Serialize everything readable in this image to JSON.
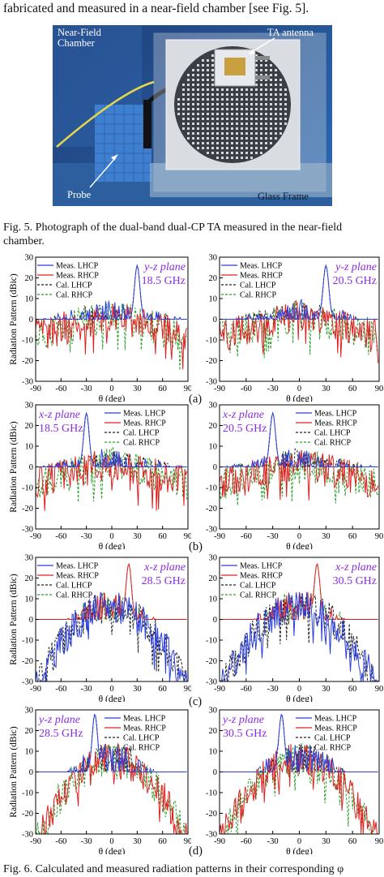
{
  "text_top": "fabricated and measured in a near-field chamber [see Fig. 5].",
  "photo": {
    "labels": {
      "chamber": "Near-Field\nChamber",
      "ta": "TA antenna",
      "probe": "Probe",
      "glass": "Glass Frame"
    }
  },
  "fig5_caption": "Fig. 5. Photograph of the dual-band dual-CP TA measured in the near-field chamber.",
  "fig6_caption": "Fig. 6. Calculated and measured radiation patterns in their corresponding φ",
  "sublabels": [
    "(a)",
    "(b)",
    "(c)",
    "(d)"
  ],
  "colors": {
    "lhcp": "#2b3fe0",
    "rhcp": "#e02020",
    "cal_lhcp": "#222222",
    "cal_rhcp": "#2a9d2a",
    "annot": "#8a2be2"
  },
  "chart_data": [
    {
      "type": "line",
      "id": "a1",
      "plane": "y-z plane",
      "freq": "18.5 GHz",
      "peak": "LHCP",
      "peak_angle": 30,
      "peak_db": 26,
      "xlabel": "θ (deg)",
      "ylabel": "Radiation Pattern (dBic)",
      "xlim": [
        -90,
        90
      ],
      "ylim": [
        -30,
        30
      ],
      "xticks": [
        -90,
        -60,
        -30,
        0,
        30,
        60,
        90
      ],
      "yticks": [
        -30,
        -20,
        -10,
        0,
        10,
        20,
        30
      ],
      "series": [
        {
          "name": "Meas. LHCP"
        },
        {
          "name": "Meas. RHCP"
        },
        {
          "name": "Cal. LHCP"
        },
        {
          "name": "Cal. RHCP"
        }
      ]
    },
    {
      "type": "line",
      "id": "a2",
      "plane": "y-z plane",
      "freq": "20.5 GHz",
      "peak": "LHCP",
      "peak_angle": 30,
      "peak_db": 26,
      "xlabel": "θ (deg)",
      "ylabel": "",
      "xlim": [
        -90,
        90
      ],
      "ylim": [
        -30,
        30
      ],
      "xticks": [
        -90,
        -60,
        -30,
        0,
        30,
        60,
        90
      ],
      "yticks": [
        -30,
        -20,
        -10,
        0,
        10,
        20,
        30
      ],
      "series": [
        {
          "name": "Meas. LHCP"
        },
        {
          "name": "Meas. RHCP"
        },
        {
          "name": "Cal. LHCP"
        },
        {
          "name": "Cal. RHCP"
        }
      ]
    },
    {
      "type": "line",
      "id": "b1",
      "plane": "x-z plane",
      "freq": "18.5 GHz",
      "peak": "LHCP",
      "peak_angle": -30,
      "peak_db": 26,
      "xlabel": "θ (deg)",
      "ylabel": "Radiation Pattern (dBic)",
      "xlim": [
        -90,
        90
      ],
      "ylim": [
        -30,
        30
      ],
      "xticks": [
        -90,
        -60,
        -30,
        0,
        30,
        60,
        90
      ],
      "yticks": [
        -30,
        -20,
        -10,
        0,
        10,
        20,
        30
      ],
      "series": [
        {
          "name": "Meas. LHCP"
        },
        {
          "name": "Meas. RHCP"
        },
        {
          "name": "Cal. LHCP"
        },
        {
          "name": "Cal. RHCP"
        }
      ]
    },
    {
      "type": "line",
      "id": "b2",
      "plane": "x-z plane",
      "freq": "20.5 GHz",
      "peak": "LHCP",
      "peak_angle": -30,
      "peak_db": 26,
      "xlabel": "θ (deg)",
      "ylabel": "",
      "xlim": [
        -90,
        90
      ],
      "ylim": [
        -30,
        30
      ],
      "xticks": [
        -90,
        -60,
        -30,
        0,
        30,
        60,
        90
      ],
      "yticks": [
        -30,
        -20,
        -10,
        0,
        10,
        20,
        30
      ],
      "series": [
        {
          "name": "Meas. LHCP"
        },
        {
          "name": "Meas. RHCP"
        },
        {
          "name": "Cal. LHCP"
        },
        {
          "name": "Cal. RHCP"
        }
      ]
    },
    {
      "type": "line",
      "id": "c1",
      "plane": "x-z plane",
      "freq": "28.5 GHz",
      "peak": "RHCP",
      "peak_angle": 20,
      "peak_db": 27,
      "xlabel": "θ (deg)",
      "ylabel": "Radiation Pattern (dBic)",
      "xlim": [
        -90,
        90
      ],
      "ylim": [
        -30,
        30
      ],
      "xticks": [
        -90,
        -60,
        -30,
        0,
        30,
        60,
        90
      ],
      "yticks": [
        -30,
        -20,
        -10,
        0,
        10,
        20,
        30
      ],
      "series": [
        {
          "name": "Meas. LHCP"
        },
        {
          "name": "Meas. RHCP"
        },
        {
          "name": "Cal. LHCP"
        },
        {
          "name": "Cal. RHCP"
        }
      ]
    },
    {
      "type": "line",
      "id": "c2",
      "plane": "x-z plane",
      "freq": "30.5 GHz",
      "peak": "RHCP",
      "peak_angle": 20,
      "peak_db": 27,
      "xlabel": "θ (deg)",
      "ylabel": "",
      "xlim": [
        -90,
        90
      ],
      "ylim": [
        -30,
        30
      ],
      "xticks": [
        -90,
        -60,
        -30,
        0,
        30,
        60,
        90
      ],
      "yticks": [
        -30,
        -20,
        -10,
        0,
        10,
        20,
        30
      ],
      "series": [
        {
          "name": "Meas. LHCP"
        },
        {
          "name": "Meas. RHCP"
        },
        {
          "name": "Cal. LHCP"
        },
        {
          "name": "Cal. RHCP"
        }
      ]
    },
    {
      "type": "line",
      "id": "d1",
      "plane": "y-z plane",
      "freq": "28.5 GHz",
      "peak": "LHCP",
      "peak_angle": -20,
      "peak_db": 28,
      "xlabel": "θ (deg)",
      "ylabel": "Radiation Pattern (dBic)",
      "xlim": [
        -90,
        90
      ],
      "ylim": [
        -30,
        30
      ],
      "xticks": [
        -90,
        -60,
        -30,
        0,
        30,
        60,
        90
      ],
      "yticks": [
        -30,
        -20,
        -10,
        0,
        10,
        20,
        30
      ],
      "series": [
        {
          "name": "Meas. LHCP"
        },
        {
          "name": "Meas. RHCP"
        },
        {
          "name": "Cal. LHCP"
        },
        {
          "name": "Cal. RHCP"
        }
      ]
    },
    {
      "type": "line",
      "id": "d2",
      "plane": "y-z plane",
      "freq": "30.5 GHz",
      "peak": "LHCP",
      "peak_angle": -20,
      "peak_db": 28,
      "xlabel": "θ (deg)",
      "ylabel": "",
      "xlim": [
        -90,
        90
      ],
      "ylim": [
        -30,
        30
      ],
      "xticks": [
        -90,
        -60,
        -30,
        0,
        30,
        60,
        90
      ],
      "yticks": [
        -30,
        -20,
        -10,
        0,
        10,
        20,
        30
      ],
      "series": [
        {
          "name": "Meas. LHCP"
        },
        {
          "name": "Meas. RHCP"
        },
        {
          "name": "Cal. LHCP"
        },
        {
          "name": "Cal. RHCP"
        }
      ]
    }
  ]
}
